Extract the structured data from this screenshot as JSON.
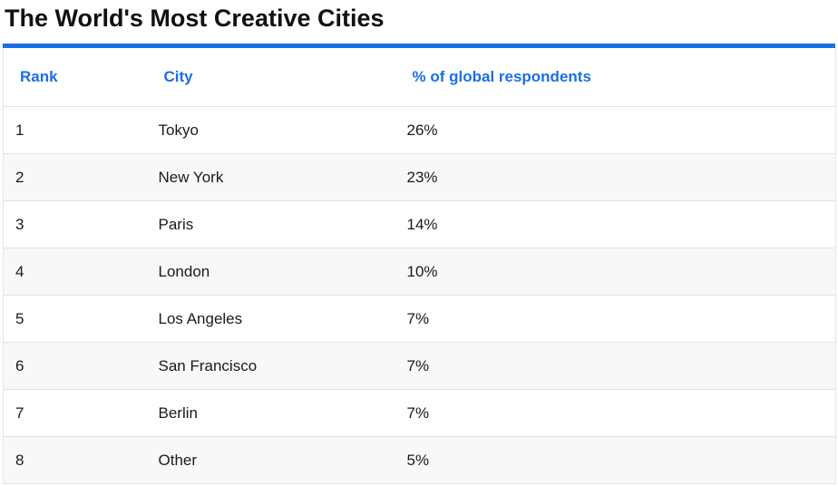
{
  "page": {
    "title": "The World's Most Creative Cities"
  },
  "table": {
    "columns": {
      "rank": "Rank",
      "city": "City",
      "percent": "% of global respondents"
    },
    "rows": [
      {
        "rank": "1",
        "city": "Tokyo",
        "percent": "26%"
      },
      {
        "rank": "2",
        "city": "New York",
        "percent": "23%"
      },
      {
        "rank": "3",
        "city": "Paris",
        "percent": "14%"
      },
      {
        "rank": "4",
        "city": "London",
        "percent": "10%"
      },
      {
        "rank": "5",
        "city": "Los Angeles",
        "percent": "7%"
      },
      {
        "rank": "6",
        "city": "San Francisco",
        "percent": "7%"
      },
      {
        "rank": "7",
        "city": "Berlin",
        "percent": "7%"
      },
      {
        "rank": "8",
        "city": "Other",
        "percent": "5%"
      }
    ]
  },
  "colors": {
    "accent": "#1a6fe6",
    "row_alt": "#f8f8f8",
    "text": "#1a1a1a"
  }
}
